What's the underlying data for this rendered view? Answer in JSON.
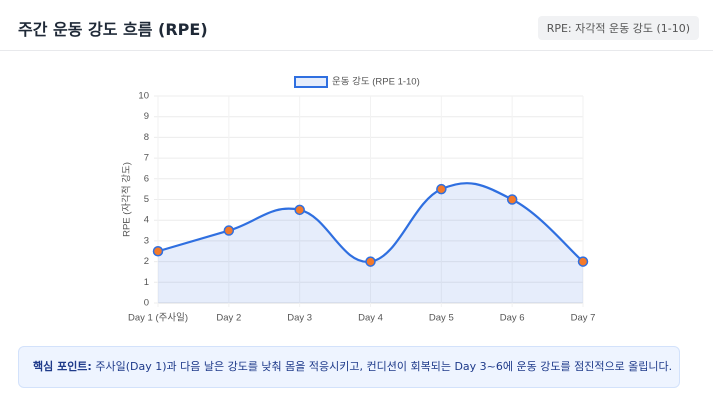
{
  "header": {
    "title": "주간 운동 강도 흐름 (RPE)",
    "badge": "RPE: 자각적 운동 강도 (1-10)"
  },
  "chart_data": {
    "type": "line",
    "y_label": "RPE (자각적 강도)",
    "categories": [
      "Day 1 (주사일)",
      "Day 2",
      "Day 3",
      "Day 4",
      "Day 5",
      "Day 6",
      "Day 7"
    ],
    "series": [
      {
        "name": "운동 강도 (RPE 1-10)",
        "color": "#2f6fe0",
        "point_color": "#f47a2a",
        "fill": "rgba(47,111,224,0.12)",
        "values": [
          2.5,
          3.5,
          4.5,
          2,
          5.5,
          5,
          2
        ]
      }
    ],
    "ylim": [
      0,
      10
    ],
    "yticks": [
      0,
      1,
      2,
      3,
      4,
      5,
      6,
      7,
      8,
      9,
      10
    ],
    "grid": true,
    "smooth": true,
    "legend": "top"
  },
  "note": {
    "label": "핵심 포인트:",
    "text": "주사일(Day 1)과 다음 날은 강도를 낮춰 몸을 적응시키고, 컨디션이 회복되는 Day 3~6에 운동 강도를 점진적으로 올립니다."
  }
}
